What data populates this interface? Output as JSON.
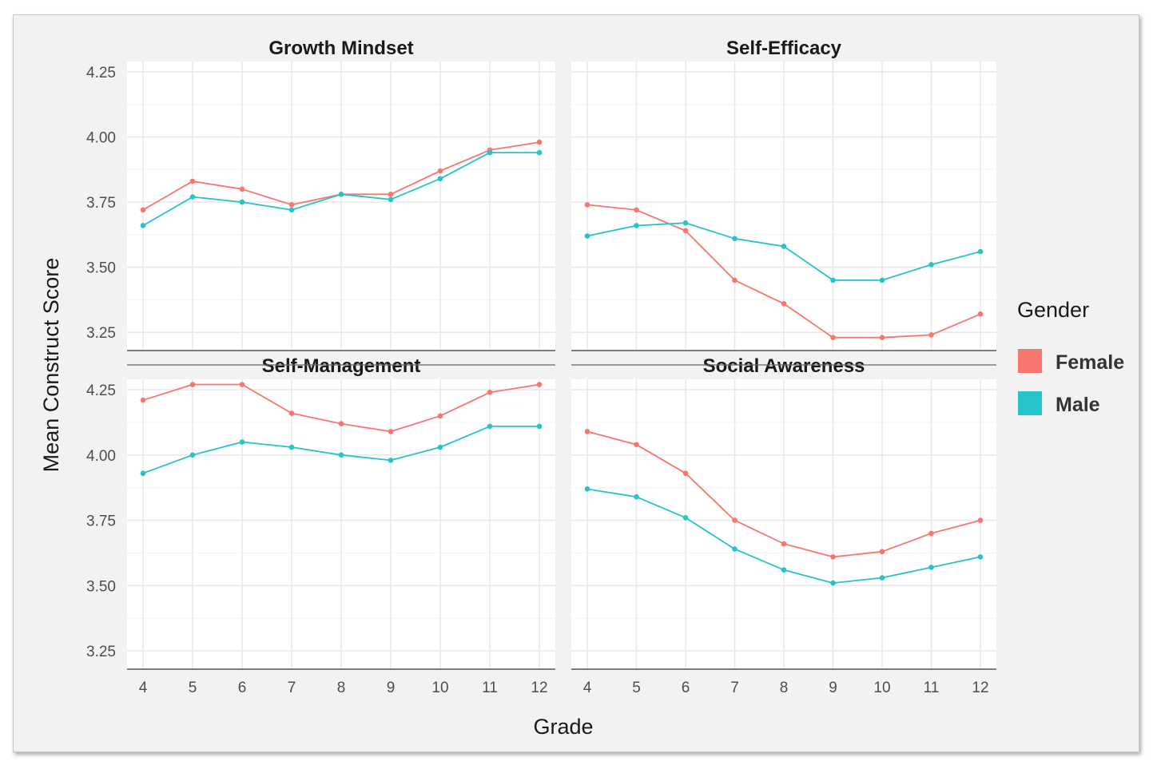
{
  "chart_data": {
    "type": "line",
    "layout": "facet 2x2",
    "xlabel": "Grade",
    "ylabel": "Mean Construct Score",
    "x": [
      4,
      5,
      6,
      7,
      8,
      9,
      10,
      11,
      12
    ],
    "x_tick_labels": [
      "4",
      "5",
      "6",
      "7",
      "8",
      "9",
      "10",
      "11",
      "12"
    ],
    "ylim": [
      3.18,
      4.29
    ],
    "y_ticks": [
      3.25,
      3.5,
      3.75,
      4.0,
      4.25
    ],
    "y_tick_labels": [
      "3.25",
      "3.50",
      "3.75",
      "4.00",
      "4.25"
    ],
    "legend": {
      "title": "Gender",
      "position": "right",
      "entries": [
        {
          "name": "Female",
          "color": "#f8766d"
        },
        {
          "name": "Male",
          "color": "#26c3c8"
        }
      ]
    },
    "panels": [
      {
        "title": "Growth Mindset",
        "series": [
          {
            "name": "Female",
            "values": [
              3.72,
              3.83,
              3.8,
              3.74,
              3.78,
              3.78,
              3.87,
              3.95,
              3.98
            ]
          },
          {
            "name": "Male",
            "values": [
              3.66,
              3.77,
              3.75,
              3.72,
              3.78,
              3.76,
              3.84,
              3.94,
              3.94
            ]
          }
        ]
      },
      {
        "title": "Self-Efficacy",
        "series": [
          {
            "name": "Female",
            "values": [
              3.74,
              3.72,
              3.64,
              3.45,
              3.36,
              3.23,
              3.23,
              3.24,
              3.32
            ]
          },
          {
            "name": "Male",
            "values": [
              3.62,
              3.66,
              3.67,
              3.61,
              3.58,
              3.45,
              3.45,
              3.51,
              3.56
            ]
          }
        ]
      },
      {
        "title": "Self-Management",
        "series": [
          {
            "name": "Female",
            "values": [
              4.21,
              4.27,
              4.27,
              4.16,
              4.12,
              4.09,
              4.15,
              4.24,
              4.27
            ]
          },
          {
            "name": "Male",
            "values": [
              3.93,
              4.0,
              4.05,
              4.03,
              4.0,
              3.98,
              4.03,
              4.11,
              4.11
            ]
          }
        ]
      },
      {
        "title": "Social Awareness",
        "series": [
          {
            "name": "Female",
            "values": [
              4.09,
              4.04,
              3.93,
              3.75,
              3.66,
              3.61,
              3.63,
              3.7,
              3.75
            ]
          },
          {
            "name": "Male",
            "values": [
              3.87,
              3.84,
              3.76,
              3.64,
              3.56,
              3.51,
              3.53,
              3.57,
              3.61
            ]
          }
        ]
      }
    ],
    "grid": true
  }
}
